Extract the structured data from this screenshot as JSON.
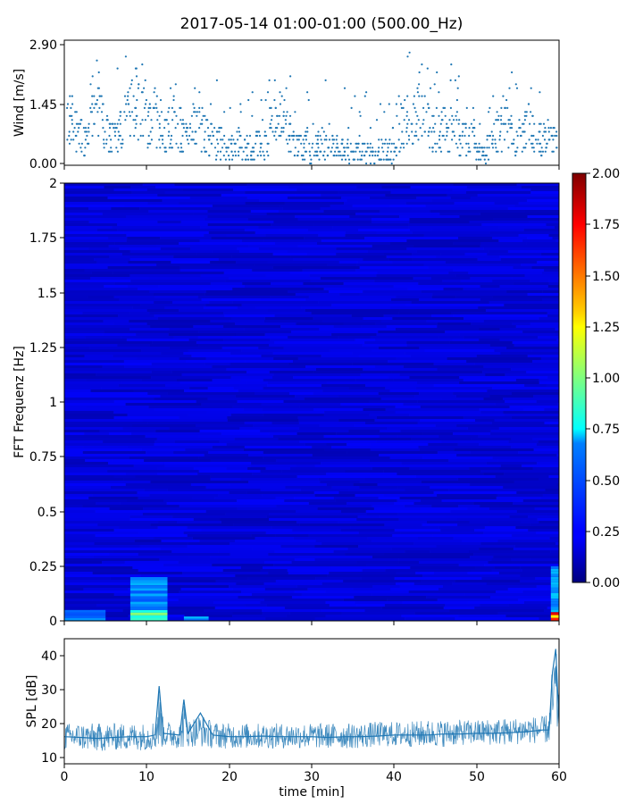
{
  "title": "2017-05-14 01:00-01:00 (500.00_Hz)",
  "chart_data": [
    {
      "type": "scatter",
      "panel": "wind",
      "ylabel": "Wind [m/s]",
      "xlim": [
        0,
        60
      ],
      "ylim": [
        0,
        2.9
      ],
      "yticks": [
        "0.00",
        "1.45",
        "2.90"
      ],
      "grid": false,
      "marker": "dot",
      "color": "#1f77b4",
      "series": [
        {
          "x": [
            0.5,
            1,
            1.5,
            2,
            2.5,
            3,
            3.5,
            4,
            4.5,
            5,
            5.5,
            6,
            6.5,
            7,
            7.5,
            8,
            8.5,
            9,
            9.5,
            10,
            10.5,
            11,
            11.5,
            12,
            12.5,
            13,
            13.5,
            14,
            14.5,
            15,
            15.5,
            16,
            16.5,
            17,
            17.5,
            18,
            18.5,
            19,
            19.5,
            20,
            20.5,
            21,
            21.5,
            22,
            22.5,
            23,
            23.5,
            24,
            24.5,
            25,
            25.5,
            26,
            26.5,
            27,
            27.5,
            28,
            28.5,
            29,
            29.5,
            30,
            30.5,
            31,
            31.5,
            32,
            32.5,
            33,
            33.5,
            34,
            34.5,
            35,
            35.5,
            36,
            36.5,
            37,
            37.5,
            38,
            38.5,
            39,
            39.5,
            40,
            40.5,
            41,
            41.5,
            42,
            42.5,
            43,
            43.5,
            44,
            44.5,
            45,
            45.5,
            46,
            46.5,
            47,
            47.5,
            48,
            48.5,
            49,
            49.5,
            50,
            50.5,
            51,
            51.5,
            52,
            52.5,
            53,
            53.5,
            54,
            54.5,
            55,
            55.5,
            56,
            56.5,
            57,
            57.5,
            58,
            58.5,
            59,
            59.5
          ],
          "y": [
            0.9,
            1.1,
            0.8,
            0.7,
            0.6,
            1.0,
            1.3,
            1.6,
            1.1,
            0.8,
            0.6,
            0.7,
            0.8,
            1.0,
            1.2,
            1.3,
            1.1,
            1.4,
            1.2,
            1.0,
            0.9,
            1.1,
            1.0,
            0.8,
            0.9,
            1.0,
            1.1,
            0.9,
            0.7,
            0.8,
            0.9,
            1.0,
            0.8,
            0.7,
            0.6,
            0.6,
            0.5,
            0.5,
            0.4,
            0.4,
            0.4,
            0.45,
            0.4,
            0.4,
            0.4,
            0.4,
            0.45,
            0.4,
            0.4,
            0.9,
            1.0,
            0.9,
            1.1,
            0.8,
            0.7,
            0.5,
            0.4,
            0.4,
            0.5,
            0.3,
            0.4,
            0.5,
            0.5,
            0.6,
            0.4,
            0.4,
            0.3,
            0.4,
            0.3,
            0.3,
            0.3,
            0.3,
            0.3,
            0.3,
            0.2,
            0.2,
            0.3,
            0.3,
            0.3,
            0.5,
            0.7,
            0.9,
            1.1,
            1.2,
            1.0,
            1.1,
            1.0,
            0.9,
            0.8,
            0.9,
            0.8,
            0.8,
            0.7,
            0.9,
            0.8,
            0.7,
            0.6,
            0.5,
            0.6,
            0.3,
            0.3,
            0.3,
            0.4,
            0.6,
            0.8,
            0.9,
            1.0,
            0.8,
            0.7,
            0.6,
            0.7,
            0.8,
            0.9,
            0.7,
            0.6,
            0.6,
            0.5,
            0.7,
            0.6
          ]
        }
      ]
    },
    {
      "type": "heatmap",
      "panel": "spectrogram",
      "ylabel": "FFT Frequenz [Hz]",
      "xlim": [
        0,
        60
      ],
      "ylim": [
        0,
        2
      ],
      "yticks": [
        "0",
        "0.25",
        "0.5",
        "0.75",
        "1",
        "1.25",
        "1.5",
        "1.75",
        "2"
      ],
      "colormap": "jet",
      "colorbar": {
        "range": [
          0,
          2
        ],
        "ticks": [
          "0.00",
          "0.25",
          "0.50",
          "0.75",
          "1.00",
          "1.25",
          "1.50",
          "1.75",
          "2.00"
        ]
      },
      "background_value": 0.18,
      "highlights": [
        {
          "x_range": [
            0,
            5
          ],
          "y_range": [
            0,
            0.05
          ],
          "value": 0.5
        },
        {
          "x_range": [
            8,
            12.5
          ],
          "y_range": [
            0,
            0.05
          ],
          "value": 0.95
        },
        {
          "x_range": [
            8,
            12.5
          ],
          "y_range": [
            0.05,
            0.2
          ],
          "value": 0.55
        },
        {
          "x_range": [
            14.5,
            17.5
          ],
          "y_range": [
            0,
            0.02
          ],
          "value": 0.6
        },
        {
          "x_range": [
            59,
            60
          ],
          "y_range": [
            0,
            0.04
          ],
          "value": 1.7
        },
        {
          "x_range": [
            59,
            60
          ],
          "y_range": [
            0.04,
            0.25
          ],
          "value": 0.6
        }
      ]
    },
    {
      "type": "line",
      "panel": "spl",
      "ylabel": "SPL [dB]",
      "xlabel": "time [min]",
      "xlim": [
        0,
        60
      ],
      "ylim": [
        8,
        45
      ],
      "xticks": [
        "0",
        "10",
        "20",
        "30",
        "40",
        "50",
        "60"
      ],
      "yticks": [
        "10",
        "20",
        "30",
        "40"
      ],
      "color": "#1f77b4",
      "series": [
        {
          "x": [
            0,
            2,
            4,
            6,
            8,
            10,
            11,
            11.5,
            12,
            14,
            14.5,
            15,
            16.5,
            18,
            20,
            22,
            24,
            26,
            28,
            30,
            32,
            34,
            36,
            38,
            40,
            42,
            44,
            46,
            48,
            50,
            52,
            54,
            56,
            58,
            58.8,
            59.2,
            59.6,
            60
          ],
          "y": [
            16,
            15.8,
            15.5,
            15.8,
            16,
            16,
            16.5,
            31,
            17,
            16.5,
            27,
            17,
            23,
            16.5,
            16,
            16,
            16.2,
            16,
            16,
            16,
            15.8,
            16,
            16,
            16.2,
            16.5,
            16.5,
            16.5,
            16.8,
            16.8,
            17,
            17,
            17.2,
            17.5,
            18,
            18,
            35,
            42,
            20
          ],
          "band_low": [
            12,
            12,
            11.5,
            12,
            12,
            12,
            12,
            12,
            13,
            12.5,
            12.5,
            13,
            13,
            12.5,
            12.5,
            12.5,
            12.5,
            12.5,
            12.5,
            12.5,
            12.5,
            12.5,
            12.5,
            13,
            13,
            13,
            13,
            13,
            13.5,
            13.5,
            13.5,
            13.5,
            14,
            14,
            14,
            15,
            16,
            15
          ],
          "band_high": [
            20,
            20,
            20,
            20,
            20,
            20,
            21,
            31,
            21,
            20,
            27,
            21,
            23,
            20.5,
            20,
            20,
            20,
            20,
            20,
            20,
            20,
            20,
            20,
            20.5,
            20.5,
            20.5,
            21,
            21,
            21,
            21,
            21.5,
            21.5,
            22,
            22,
            23,
            38,
            43,
            30
          ]
        }
      ]
    }
  ]
}
